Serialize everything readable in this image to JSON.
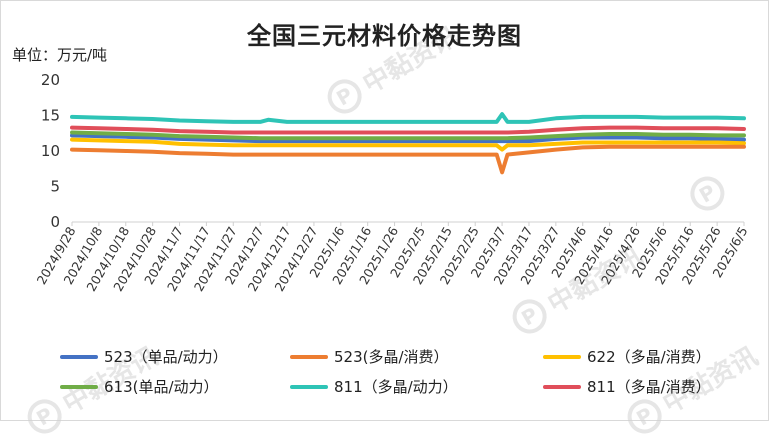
{
  "title": "全国三元材料价格走势图",
  "unit_label": "单位：万元/吨",
  "watermark": {
    "icon": "p-logo-icon",
    "text": "中黏资讯"
  },
  "chart_data": {
    "type": "line",
    "title": "全国三元材料价格走势图",
    "ylabel": "单位：万元/吨",
    "ylim": [
      0,
      20
    ],
    "yticks": [
      0,
      5,
      10,
      15,
      20
    ],
    "grid": false,
    "legend_position": "bottom",
    "x_tick_labels": [
      "2024/9/28",
      "2024/10/8",
      "2024/10/18",
      "2024/10/28",
      "2024/11/7",
      "2024/11/17",
      "2024/11/27",
      "2024/12/7",
      "2024/12/17",
      "2024/12/27",
      "2025/1/6",
      "2025/1/16",
      "2025/1/26",
      "2025/2/5",
      "2025/2/15",
      "2025/2/25",
      "2025/3/7",
      "2025/3/17",
      "2025/3/27",
      "2025/4/6",
      "2025/4/16",
      "2025/4/26",
      "2025/5/6",
      "2025/5/16",
      "2025/5/26",
      "2025/6/5"
    ],
    "x": [
      "2024/9/28",
      "2024/10/8",
      "2024/10/18",
      "2024/10/28",
      "2024/11/7",
      "2024/11/17",
      "2024/11/27",
      "2024/12/7",
      "2024/12/10",
      "2024/12/17",
      "2024/12/27",
      "2025/1/6",
      "2025/1/16",
      "2025/1/26",
      "2025/2/5",
      "2025/2/15",
      "2025/2/25",
      "2025/3/5",
      "2025/3/7",
      "2025/3/9",
      "2025/3/17",
      "2025/3/27",
      "2025/4/6",
      "2025/4/16",
      "2025/4/26",
      "2025/5/6",
      "2025/5/16",
      "2025/5/26",
      "2025/6/5"
    ],
    "series": [
      {
        "name": "523（单品/动力）",
        "color": "#4472c4",
        "values": [
          12.2,
          12.1,
          12.0,
          11.9,
          11.7,
          11.6,
          11.5,
          11.4,
          11.4,
          11.4,
          11.4,
          11.4,
          11.4,
          11.4,
          11.4,
          11.4,
          11.4,
          11.4,
          11.4,
          11.4,
          11.4,
          11.7,
          11.9,
          11.9,
          11.9,
          11.8,
          11.8,
          11.7,
          11.6
        ]
      },
      {
        "name": "523(多晶/消费）",
        "color": "#ed7d31",
        "values": [
          10.2,
          10.1,
          10.0,
          9.9,
          9.7,
          9.6,
          9.5,
          9.5,
          9.5,
          9.5,
          9.5,
          9.5,
          9.5,
          9.5,
          9.5,
          9.5,
          9.5,
          9.5,
          7.0,
          9.5,
          9.8,
          10.2,
          10.5,
          10.6,
          10.6,
          10.6,
          10.6,
          10.6,
          10.6
        ]
      },
      {
        "name": "622（多晶/消费）",
        "color": "#ffc000",
        "values": [
          11.6,
          11.5,
          11.4,
          11.3,
          11.0,
          10.9,
          10.8,
          10.8,
          10.8,
          10.8,
          10.8,
          10.8,
          10.8,
          10.8,
          10.8,
          10.8,
          10.8,
          10.8,
          10.2,
          10.8,
          10.8,
          11.0,
          11.2,
          11.2,
          11.2,
          11.2,
          11.2,
          11.2,
          11.1
        ]
      },
      {
        "name": "613(单品/动力）",
        "color": "#70ad47",
        "values": [
          12.6,
          12.5,
          12.4,
          12.3,
          12.1,
          12.0,
          11.9,
          11.8,
          11.8,
          11.8,
          11.8,
          11.8,
          11.8,
          11.8,
          11.8,
          11.8,
          11.8,
          11.8,
          11.8,
          11.8,
          11.9,
          12.1,
          12.3,
          12.4,
          12.4,
          12.3,
          12.3,
          12.2,
          12.2
        ]
      },
      {
        "name": "811（多晶/动力）",
        "color": "#2ec4b6",
        "values": [
          14.8,
          14.7,
          14.6,
          14.5,
          14.3,
          14.2,
          14.1,
          14.1,
          14.4,
          14.1,
          14.1,
          14.1,
          14.1,
          14.1,
          14.1,
          14.1,
          14.1,
          14.1,
          15.2,
          14.1,
          14.1,
          14.6,
          14.8,
          14.8,
          14.8,
          14.7,
          14.7,
          14.7,
          14.6
        ]
      },
      {
        "name": "811（多晶/消费）",
        "color": "#e04e5a",
        "values": [
          13.3,
          13.2,
          13.1,
          13.0,
          12.8,
          12.7,
          12.6,
          12.6,
          12.6,
          12.6,
          12.6,
          12.6,
          12.6,
          12.6,
          12.6,
          12.6,
          12.6,
          12.6,
          12.6,
          12.6,
          12.7,
          13.0,
          13.2,
          13.3,
          13.3,
          13.2,
          13.2,
          13.2,
          13.1
        ]
      }
    ]
  }
}
